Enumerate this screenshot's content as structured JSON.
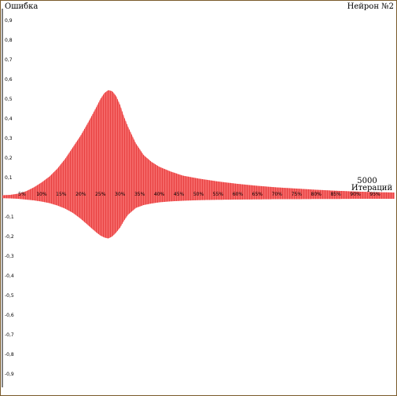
{
  "header": {
    "left_label": "Ошибка",
    "right_label": "Нейрон №2"
  },
  "chart_data": {
    "type": "area",
    "title": "",
    "ylabel": "Ошибка",
    "xlabel": "Итераций",
    "x_end_value": "5000",
    "iterations": 5000,
    "ylim": [
      -1,
      1
    ],
    "y_ticks_positive": [
      "0,9",
      "0,8",
      "0,7",
      "0,6",
      "0,5",
      "0,4",
      "0,3",
      "0,2",
      "0,1"
    ],
    "y_ticks_negative": [
      "-0,1",
      "-0,2",
      "-0,3",
      "-0,4",
      "-0,5",
      "-0,6",
      "-0,7",
      "-0,8",
      "-0,9"
    ],
    "x_ticks": [
      "5%",
      "10%",
      "15%",
      "20%",
      "25%",
      "30%",
      "35%",
      "40%",
      "45%",
      "50%",
      "55%",
      "60%",
      "65%",
      "70%",
      "75%",
      "80%",
      "85%",
      "90%",
      "95%"
    ],
    "series": [
      {
        "name": "",
        "color": "#d40000",
        "fill_color": "#ff8a8a",
        "x_percent": [
          0,
          2,
          4,
          6,
          8,
          10,
          12,
          14,
          16,
          18,
          20,
          22,
          24,
          25,
          26,
          27,
          28,
          29,
          30,
          31,
          32,
          34,
          36,
          38,
          40,
          43,
          46,
          50,
          55,
          60,
          65,
          70,
          75,
          80,
          85,
          90,
          95,
          100
        ],
        "upper": [
          0.01,
          0.012,
          0.018,
          0.03,
          0.05,
          0.075,
          0.105,
          0.145,
          0.195,
          0.255,
          0.315,
          0.385,
          0.46,
          0.5,
          0.53,
          0.545,
          0.54,
          0.515,
          0.47,
          0.41,
          0.36,
          0.275,
          0.215,
          0.18,
          0.155,
          0.13,
          0.11,
          0.095,
          0.08,
          0.068,
          0.058,
          0.05,
          0.044,
          0.038,
          0.033,
          0.029,
          0.026,
          0.024
        ],
        "lower": [
          -0.005,
          -0.006,
          -0.008,
          -0.012,
          -0.016,
          -0.022,
          -0.03,
          -0.042,
          -0.058,
          -0.08,
          -0.11,
          -0.145,
          -0.18,
          -0.195,
          -0.205,
          -0.21,
          -0.2,
          -0.18,
          -0.155,
          -0.12,
          -0.09,
          -0.055,
          -0.04,
          -0.032,
          -0.026,
          -0.021,
          -0.018,
          -0.015,
          -0.013,
          -0.012,
          -0.011,
          -0.01,
          -0.01,
          -0.009,
          -0.009,
          -0.008,
          -0.008,
          -0.008
        ]
      }
    ]
  }
}
